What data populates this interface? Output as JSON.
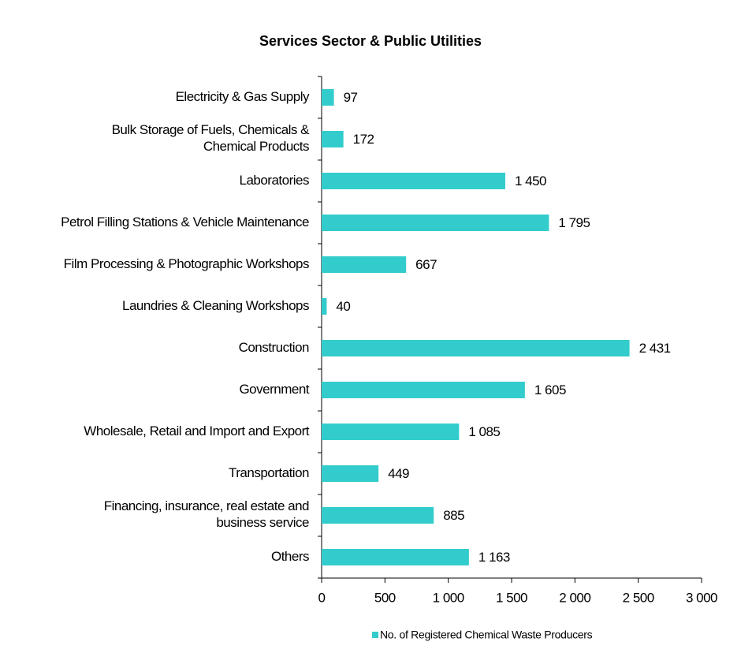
{
  "chart_data": {
    "type": "bar",
    "orientation": "horizontal",
    "title": "Services Sector & Public Utilities",
    "categories": [
      "Electricity & Gas Supply",
      "Bulk Storage of Fuels, Chemicals &\nChemical Products",
      "Laboratories",
      "Petrol Filling Stations & Vehicle Maintenance",
      "Film Processing & Photographic Workshops",
      "Laundries & Cleaning Workshops",
      "Construction",
      "Government",
      "Wholesale, Retail and Import and Export",
      "Transportation",
      "Financing, insurance, real estate and\nbusiness service",
      "Others"
    ],
    "series": [
      {
        "name": "No. of Registered Chemical Waste Producers",
        "color": "#33cccc",
        "values": [
          97,
          172,
          1450,
          1795,
          667,
          40,
          2431,
          1605,
          1085,
          449,
          885,
          1163
        ],
        "value_labels": [
          "97",
          "172",
          "1 450",
          "1 795",
          "667",
          "40",
          "2 431",
          "1 605",
          "1 085",
          "449",
          "885",
          "1 163"
        ]
      }
    ],
    "xlim": [
      0,
      3000
    ],
    "xticks": [
      0,
      500,
      {
        "value": 1000,
        "label": "1 000"
      },
      {
        "value": 1500,
        "label": "1 500"
      },
      {
        "value": 2000,
        "label": "2 000"
      },
      {
        "value": 2500,
        "label": "2 500"
      },
      {
        "value": 3000,
        "label": "3 000"
      }
    ],
    "grid": false,
    "legend": "bottom"
  }
}
